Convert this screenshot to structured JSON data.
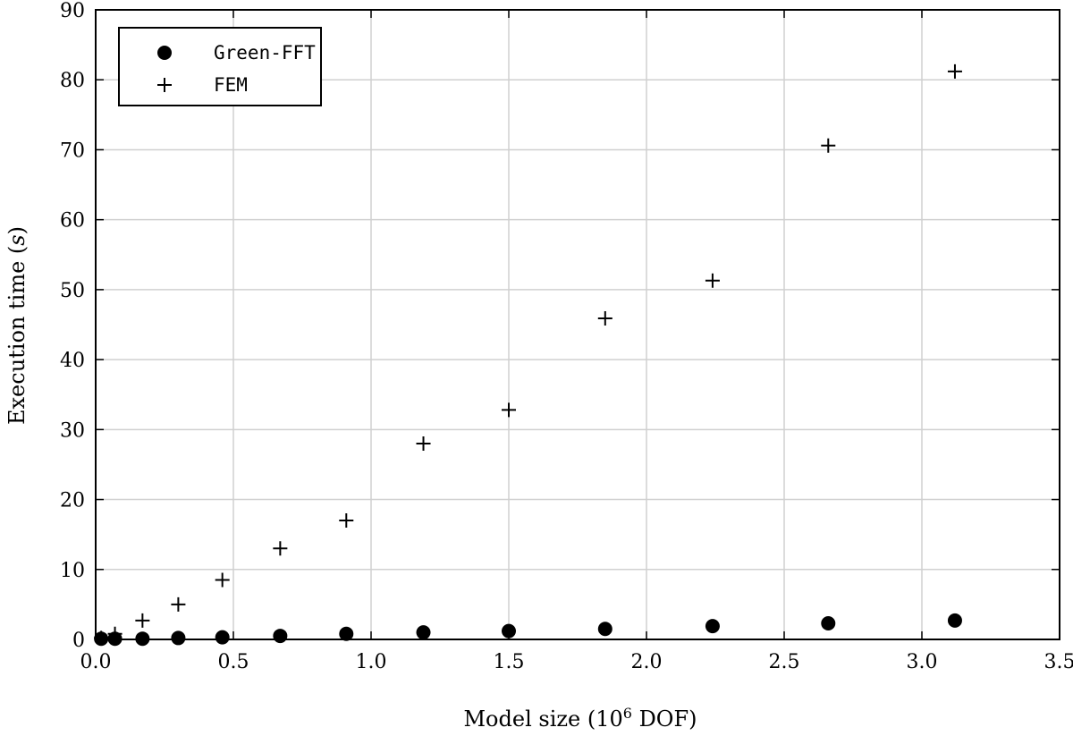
{
  "chart_data": {
    "type": "scatter",
    "xlabel_prefix": "Model size (10",
    "xlabel_sup": "6",
    "xlabel_suffix": " DOF)",
    "ylabel_prefix": "Execution time (",
    "ylabel_var": "s",
    "ylabel_suffix": ")",
    "xlim": [
      0,
      3.5
    ],
    "ylim": [
      0,
      90
    ],
    "xticks": [
      0,
      0.5,
      1.0,
      1.5,
      2.0,
      2.5,
      3.0,
      3.5
    ],
    "xtick_labels": [
      "0.0",
      "0.5",
      "1.0",
      "1.5",
      "2.0",
      "2.5",
      "3.0",
      "3.5"
    ],
    "yticks": [
      0,
      10,
      20,
      30,
      40,
      50,
      60,
      70,
      80,
      90
    ],
    "ytick_labels": [
      "0",
      "10",
      "20",
      "30",
      "40",
      "50",
      "60",
      "70",
      "80",
      "90"
    ],
    "grid": true,
    "legend_position": "top-left",
    "series": [
      {
        "name": "Green-FFT",
        "marker": "filled-circle",
        "color": "#000000",
        "x": [
          0.02,
          0.07,
          0.17,
          0.3,
          0.46,
          0.67,
          0.91,
          1.19,
          1.5,
          1.85,
          2.24,
          2.66,
          3.12
        ],
        "y": [
          0.1,
          0.1,
          0.1,
          0.2,
          0.3,
          0.5,
          0.8,
          1.0,
          1.2,
          1.5,
          1.9,
          2.3,
          2.7
        ]
      },
      {
        "name": "FEM",
        "marker": "plus",
        "color": "#000000",
        "x": [
          0.02,
          0.07,
          0.17,
          0.3,
          0.46,
          0.67,
          0.91,
          1.19,
          1.5,
          1.85,
          2.24,
          2.66,
          3.12
        ],
        "y": [
          0.2,
          0.8,
          2.7,
          5.0,
          8.5,
          13.0,
          17.0,
          28.0,
          32.8,
          45.9,
          51.3,
          70.6,
          81.2
        ]
      }
    ]
  }
}
